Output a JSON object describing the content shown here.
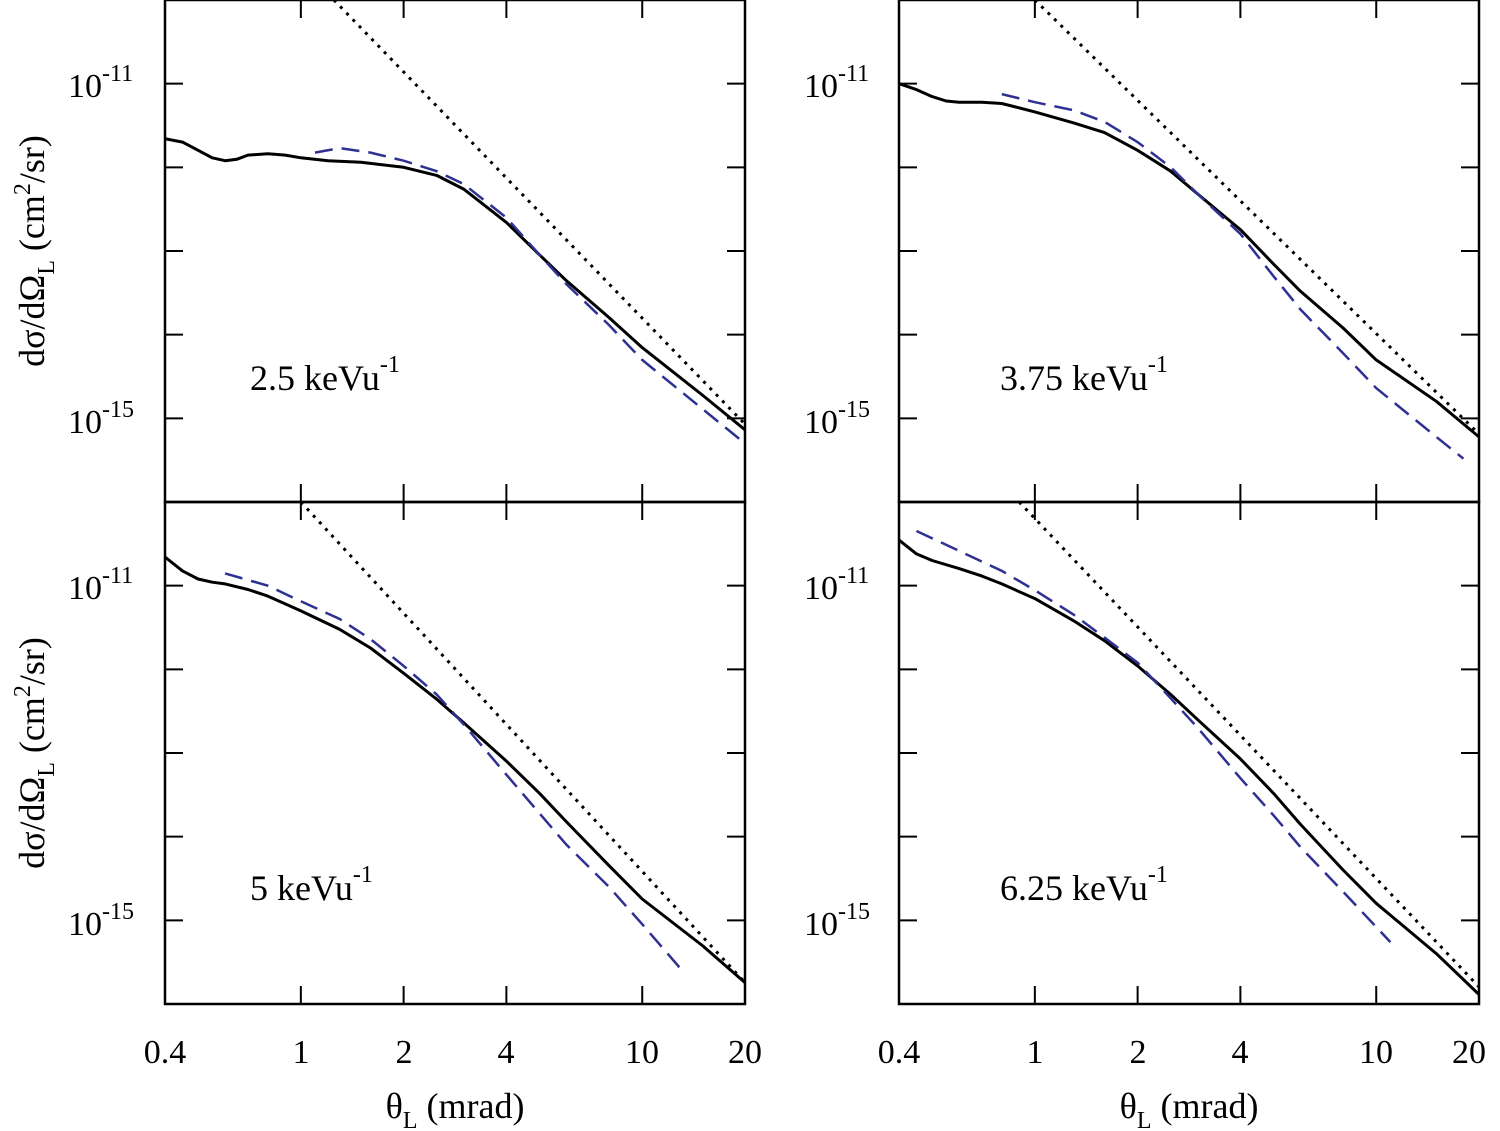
{
  "chart_data": {
    "type": "line",
    "layout": "2x2 grid",
    "xscale": "log",
    "yscale": "log",
    "xlim": [
      0.4,
      20
    ],
    "ylim": [
      1e-16,
      1e-10
    ],
    "xticks": [
      0.4,
      1,
      2,
      4,
      10,
      20
    ],
    "xtick_labels": [
      "0.4",
      "1",
      "2",
      "4",
      "10",
      "20"
    ],
    "yticks_major": [
      1e-11,
      1e-15
    ],
    "ytick_labels": [
      {
        "base": "10",
        "exp": "-11"
      },
      {
        "base": "10",
        "exp": "-15"
      }
    ],
    "xlabel": {
      "main": "θ",
      "sub": "L",
      "rest": " (mrad)"
    },
    "ylabel": {
      "pre": "dσ/dΩ",
      "sub": "L",
      "mid": " (cm",
      "sup": "2",
      "post": "/sr)"
    },
    "colors": {
      "solid": "#000000",
      "dashed": "#2e3192",
      "dotted": "#000000"
    },
    "panels": [
      {
        "label": {
          "value": "2.5 keVu",
          "sup": "-1"
        },
        "series": [
          {
            "name": "solid",
            "style": "solid",
            "x": [
              0.4,
              0.45,
              0.5,
              0.55,
              0.6,
              0.65,
              0.7,
              0.8,
              0.9,
              1.0,
              1.2,
              1.5,
              2.0,
              2.5,
              3,
              4,
              5,
              6,
              8,
              10,
              15,
              20
            ],
            "y": [
              2.2e-12,
              2e-12,
              1.6e-12,
              1.3e-12,
              1.2e-12,
              1.25e-12,
              1.4e-12,
              1.45e-12,
              1.4e-12,
              1.3e-12,
              1.2e-12,
              1.15e-12,
              1e-12,
              8e-13,
              5.5e-13,
              2.2e-13,
              9e-14,
              4.4e-14,
              1.6e-14,
              7e-15,
              1.9e-15,
              7.3e-16
            ]
          },
          {
            "name": "dashed",
            "style": "dashed",
            "x": [
              1.1,
              1.3,
              1.6,
              2.0,
              2.5,
              3,
              4,
              5,
              6,
              8,
              10,
              15,
              20
            ],
            "y": [
              1.5e-12,
              1.7e-12,
              1.5e-12,
              1.2e-12,
              9e-13,
              6.3e-13,
              2.5e-13,
              9e-14,
              4e-14,
              1.3e-14,
              5e-15,
              1.3e-15,
              5e-16
            ]
          },
          {
            "name": "dotted",
            "style": "dotted",
            "x": [
              1.25,
              20
            ],
            "y": [
              1e-10,
              8.5e-16
            ]
          }
        ]
      },
      {
        "label": {
          "value": "3.75 keVu",
          "sup": "-1"
        },
        "series": [
          {
            "name": "solid",
            "style": "solid",
            "x": [
              0.4,
              0.45,
              0.5,
              0.55,
              0.6,
              0.7,
              0.8,
              1.0,
              1.3,
              1.6,
              2.0,
              2.5,
              3,
              4,
              5,
              6,
              8,
              10,
              15,
              20
            ],
            "y": [
              1e-11,
              8.5e-12,
              7e-12,
              6.2e-12,
              6e-12,
              6e-12,
              5.8e-12,
              4.6e-12,
              3.4e-12,
              2.6e-12,
              1.6e-12,
              9e-13,
              4.8e-13,
              1.8e-13,
              7e-14,
              3.3e-14,
              1.2e-14,
              5e-15,
              1.6e-15,
              6e-16
            ]
          },
          {
            "name": "dashed",
            "style": "dashed",
            "x": [
              0.8,
              1.0,
              1.3,
              1.6,
              2.0,
              2.5,
              3,
              4,
              5,
              6,
              8,
              10,
              15,
              18
            ],
            "y": [
              7.5e-12,
              6e-12,
              4.8e-12,
              3.5e-12,
              2e-12,
              1e-12,
              4.8e-13,
              1.6e-13,
              5e-14,
              2e-14,
              6e-15,
              2.3e-15,
              6e-16,
              3.3e-16
            ]
          },
          {
            "name": "dotted",
            "style": "dotted",
            "x": [
              1.0,
              20
            ],
            "y": [
              1e-10,
              6.5e-16
            ]
          }
        ]
      },
      {
        "label": {
          "value": "5 keVu",
          "sup": "-1"
        },
        "series": [
          {
            "name": "solid",
            "style": "solid",
            "x": [
              0.4,
              0.45,
              0.5,
              0.55,
              0.6,
              0.7,
              0.8,
              1.0,
              1.3,
              1.6,
              2.0,
              2.5,
              3,
              4,
              5,
              6,
              8,
              10,
              15,
              20
            ],
            "y": [
              2.2e-11,
              1.5e-11,
              1.2e-11,
              1.1e-11,
              1.05e-11,
              9e-12,
              7.5e-12,
              5e-12,
              3e-12,
              1.8e-12,
              9e-13,
              4.4e-13,
              2.3e-13,
              8e-14,
              3.3e-14,
              1.5e-14,
              4.5e-15,
              1.8e-15,
              5e-16,
              1.8e-16
            ]
          },
          {
            "name": "dashed",
            "style": "dashed",
            "x": [
              0.6,
              0.8,
              1.0,
              1.3,
              1.6,
              2.0,
              2.5,
              3,
              4,
              5,
              6,
              8,
              10,
              13
            ],
            "y": [
              1.4e-11,
              1e-11,
              6.5e-12,
              4e-12,
              2.3e-12,
              1.1e-12,
              5e-13,
              2.2e-13,
              5.5e-14,
              1.9e-14,
              8e-15,
              2.5e-15,
              9e-16,
              2.6e-16
            ]
          },
          {
            "name": "dotted",
            "style": "dotted",
            "x": [
              1.0,
              20
            ],
            "y": [
              1e-10,
              1.8e-16
            ]
          }
        ]
      },
      {
        "label": {
          "value": "6.25 keVu",
          "sup": "-1"
        },
        "series": [
          {
            "name": "solid",
            "style": "solid",
            "x": [
              0.4,
              0.45,
              0.5,
              0.6,
              0.7,
              0.8,
              1.0,
              1.3,
              1.6,
              2.0,
              2.5,
              3,
              4,
              5,
              6,
              8,
              10,
              15,
              20
            ],
            "y": [
              3.5e-11,
              2.4e-11,
              2e-11,
              1.6e-11,
              1.3e-11,
              1.05e-11,
              7e-12,
              3.8e-12,
              2.2e-12,
              1.1e-12,
              5e-13,
              2.5e-13,
              8.5e-14,
              3.3e-14,
              1.4e-14,
              4e-15,
              1.6e-15,
              4e-16,
              1.3e-16
            ]
          },
          {
            "name": "dashed",
            "style": "dashed",
            "x": [
              0.45,
              0.6,
              0.8,
              1.0,
              1.3,
              1.6,
              2.0,
              2.5,
              3,
              4,
              5,
              6,
              8,
              11
            ],
            "y": [
              4.5e-11,
              2.6e-11,
              1.5e-11,
              8.8e-12,
              4.5e-12,
              2.4e-12,
              1.2e-12,
              4.5e-13,
              2e-13,
              5e-14,
              1.8e-14,
              7.5e-15,
              2.2e-15,
              5.5e-16
            ]
          },
          {
            "name": "dotted",
            "style": "dotted",
            "x": [
              0.9,
              20
            ],
            "y": [
              1e-10,
              1.6e-16
            ]
          }
        ]
      }
    ]
  }
}
